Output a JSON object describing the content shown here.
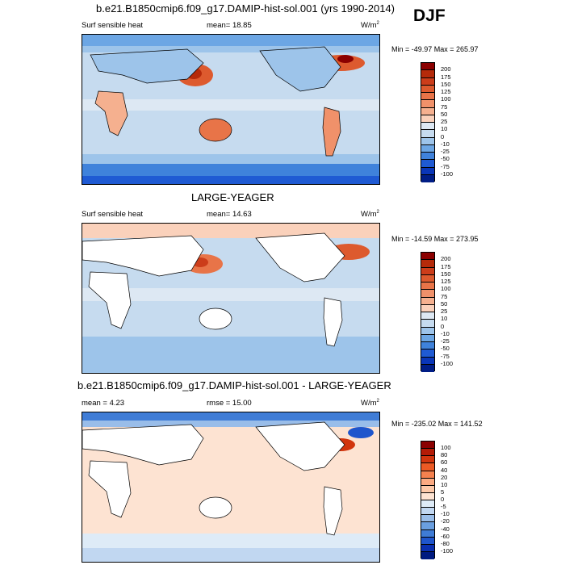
{
  "season": "DJF",
  "panel1": {
    "title": "b.e21.B1850cmip6.f09_g17.DAMIP-hist-sol.001 (yrs 1990-2014)",
    "left_label": "Surf sensible heat",
    "mean_label": "mean=  18.85",
    "units": "W/m",
    "units_sup": "2",
    "minmax": "Min = -49.97 Max = 265.97",
    "colorbar": {
      "labels": [
        "200",
        "175",
        "150",
        "125",
        "100",
        "75",
        "50",
        "25",
        "10",
        "0",
        "-10",
        "-25",
        "-50",
        "-75",
        "-100"
      ],
      "colors": [
        "#8b0000",
        "#b52a0a",
        "#cc3d1a",
        "#dd5a2e",
        "#e87448",
        "#f0916a",
        "#f5b08f",
        "#fad1bb",
        "#dde8f3",
        "#c6dbef",
        "#9dc4ea",
        "#6ca6e4",
        "#3f82db",
        "#1f5ad3",
        "#0a36b8",
        "#001d86"
      ]
    }
  },
  "panel2": {
    "title": "LARGE-YEAGER",
    "left_label": "Surf sensible heat",
    "mean_label": "mean=  14.63",
    "units": "W/m",
    "units_sup": "2",
    "minmax": "Min = -14.59 Max = 273.95",
    "colorbar": {
      "labels": [
        "200",
        "175",
        "150",
        "125",
        "100",
        "75",
        "50",
        "25",
        "10",
        "0",
        "-10",
        "-25",
        "-50",
        "-75",
        "-100"
      ],
      "colors": [
        "#8b0000",
        "#b52a0a",
        "#cc3d1a",
        "#dd5a2e",
        "#e87448",
        "#f0916a",
        "#f5b08f",
        "#fad1bb",
        "#dde8f3",
        "#c6dbef",
        "#9dc4ea",
        "#6ca6e4",
        "#3f82db",
        "#1f5ad3",
        "#0a36b8",
        "#001d86"
      ]
    }
  },
  "panel3": {
    "title": "b.e21.B1850cmip6.f09_g17.DAMIP-hist-sol.001 - LARGE-YEAGER",
    "left_label": "mean =   4.23",
    "mean_label": "rmse =  15.00",
    "units": "W/m",
    "units_sup": "2",
    "minmax": "Min = -235.02 Max = 141.52",
    "colorbar": {
      "labels": [
        "100",
        "80",
        "60",
        "40",
        "20",
        "10",
        "5",
        "0",
        "-5",
        "-10",
        "-20",
        "-40",
        "-60",
        "-80",
        "-100"
      ],
      "colors": [
        "#8b0000",
        "#b31b06",
        "#d1350e",
        "#ec5a24",
        "#f5814f",
        "#fbaa82",
        "#fdc9a9",
        "#fde3d2",
        "#deebf7",
        "#c1d7f1",
        "#99bde9",
        "#6a9fe0",
        "#3f7cd6",
        "#1f55cc",
        "#0a2fb0",
        "#001a80"
      ]
    }
  }
}
